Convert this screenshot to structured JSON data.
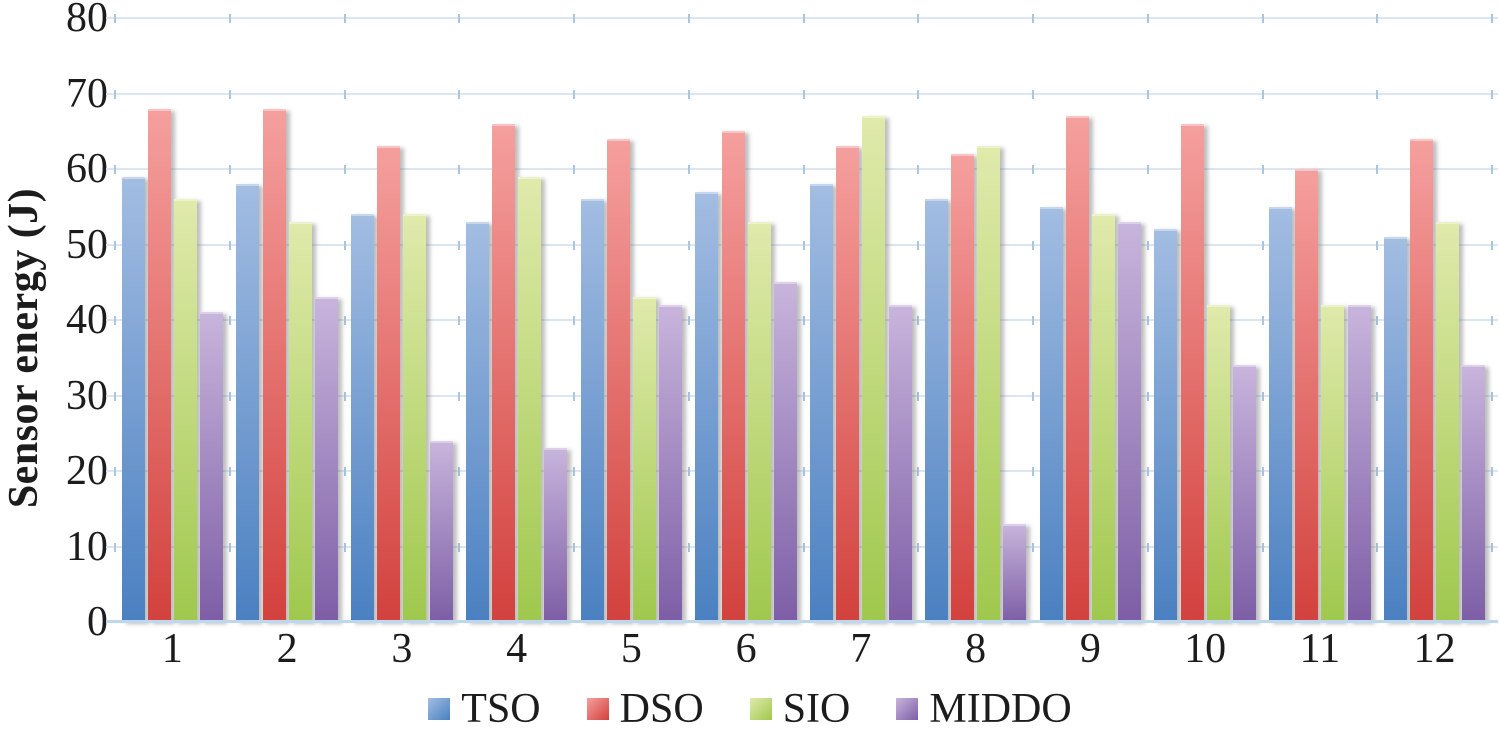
{
  "chart_data": {
    "type": "bar",
    "title": "",
    "xlabel": "",
    "ylabel": "Sensor energy (J)",
    "ylim": [
      0,
      80
    ],
    "ytick_step": 10,
    "grid": "horizontal",
    "legend_position": "bottom",
    "categories": [
      "1",
      "2",
      "3",
      "4",
      "5",
      "6",
      "7",
      "8",
      "9",
      "10",
      "11",
      "12"
    ],
    "series": [
      {
        "name": "TSO",
        "color_top": "#a3bde2",
        "color_bottom": "#4a80c1",
        "values": [
          59,
          58,
          54,
          53,
          56,
          57,
          58,
          56,
          55,
          52,
          55,
          51
        ]
      },
      {
        "name": "DSO",
        "color_top": "#f5a09e",
        "color_bottom": "#d2413d",
        "values": [
          68,
          68,
          63,
          66,
          64,
          65,
          63,
          62,
          67,
          66,
          60,
          64
        ]
      },
      {
        "name": "SIO",
        "color_top": "#e0eaac",
        "color_bottom": "#9fc84d",
        "values": [
          56,
          53,
          54,
          59,
          43,
          53,
          67,
          63,
          54,
          42,
          42,
          53
        ]
      },
      {
        "name": "MIDDO",
        "color_top": "#c8b5dc",
        "color_bottom": "#7d5ea6",
        "values": [
          41,
          43,
          24,
          23,
          42,
          45,
          42,
          13,
          53,
          34,
          42,
          34
        ]
      }
    ],
    "colors": {
      "gridline": "#dce6f2",
      "axis_line": "#bcd7ee",
      "grid_tick": "#a9c6e3",
      "text": "#1c1c1c"
    }
  }
}
